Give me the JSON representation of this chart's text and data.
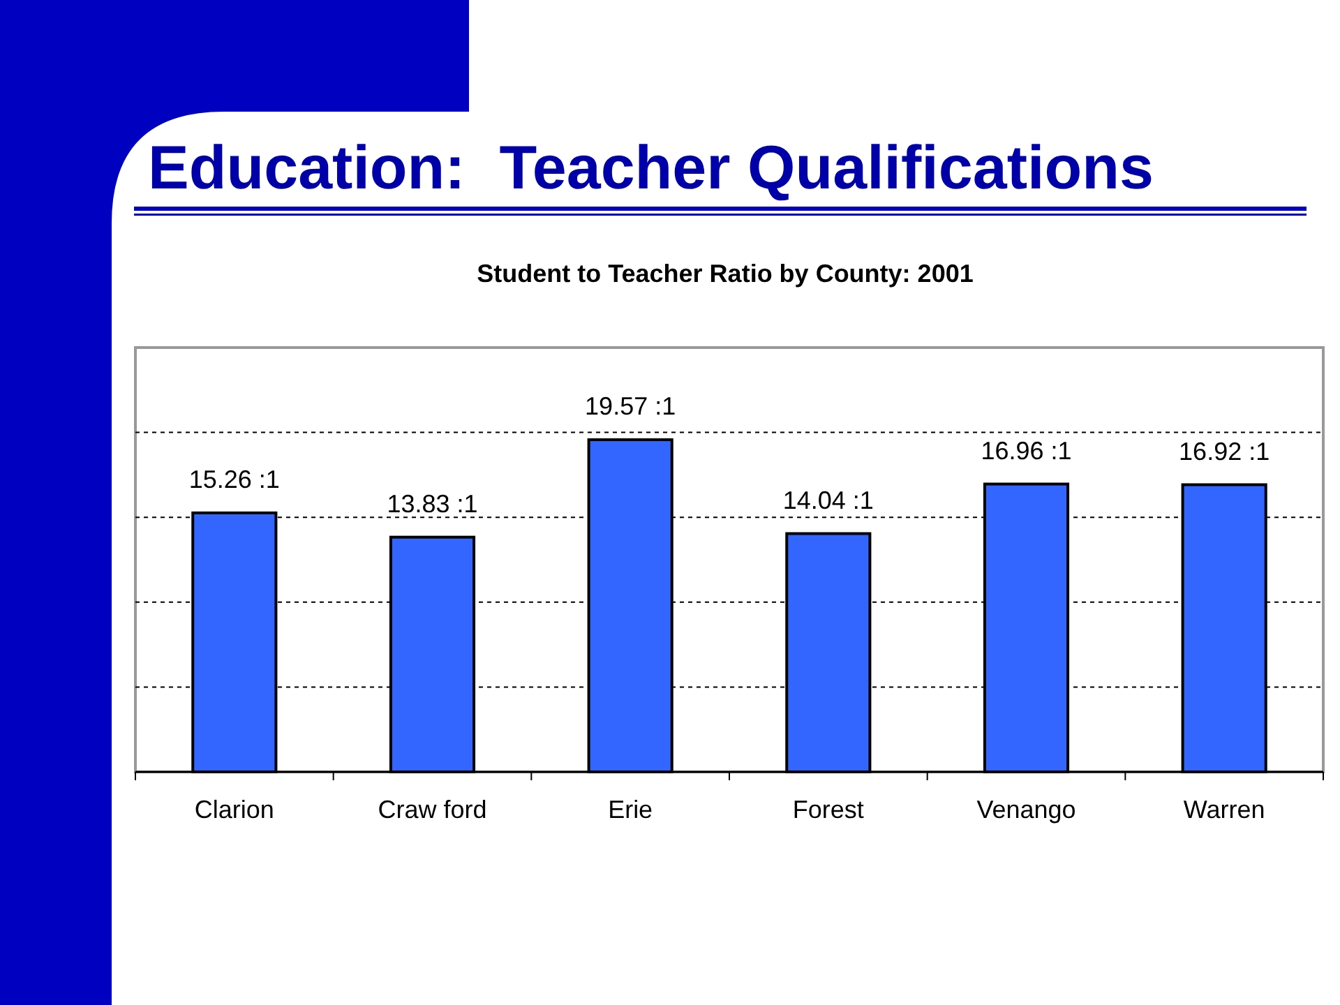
{
  "chart_data": {
    "type": "bar",
    "title": "Education:  Teacher Qualifications",
    "subtitle": "Student to Teacher Ratio by County: 2001",
    "categories": [
      "Clarion",
      "Craw ford",
      "Erie",
      "Forest",
      "Venango",
      "Warren"
    ],
    "values": [
      15.26,
      13.83,
      19.57,
      14.04,
      16.96,
      16.92
    ],
    "value_labels": [
      "15.26 :1",
      "13.83 :1",
      "19.57 :1",
      "14.04 :1",
      "16.96 :1",
      "16.92 :1"
    ],
    "color": "#3366ff",
    "ylim": [
      0,
      25
    ],
    "yticks": [
      {
        "value": 5,
        "label": null
      },
      {
        "value": 10,
        "label": null
      },
      {
        "value": 15,
        "label": null
      },
      {
        "value": 20,
        "label": null
      }
    ],
    "grid": "y",
    "tick_labels": "x"
  }
}
